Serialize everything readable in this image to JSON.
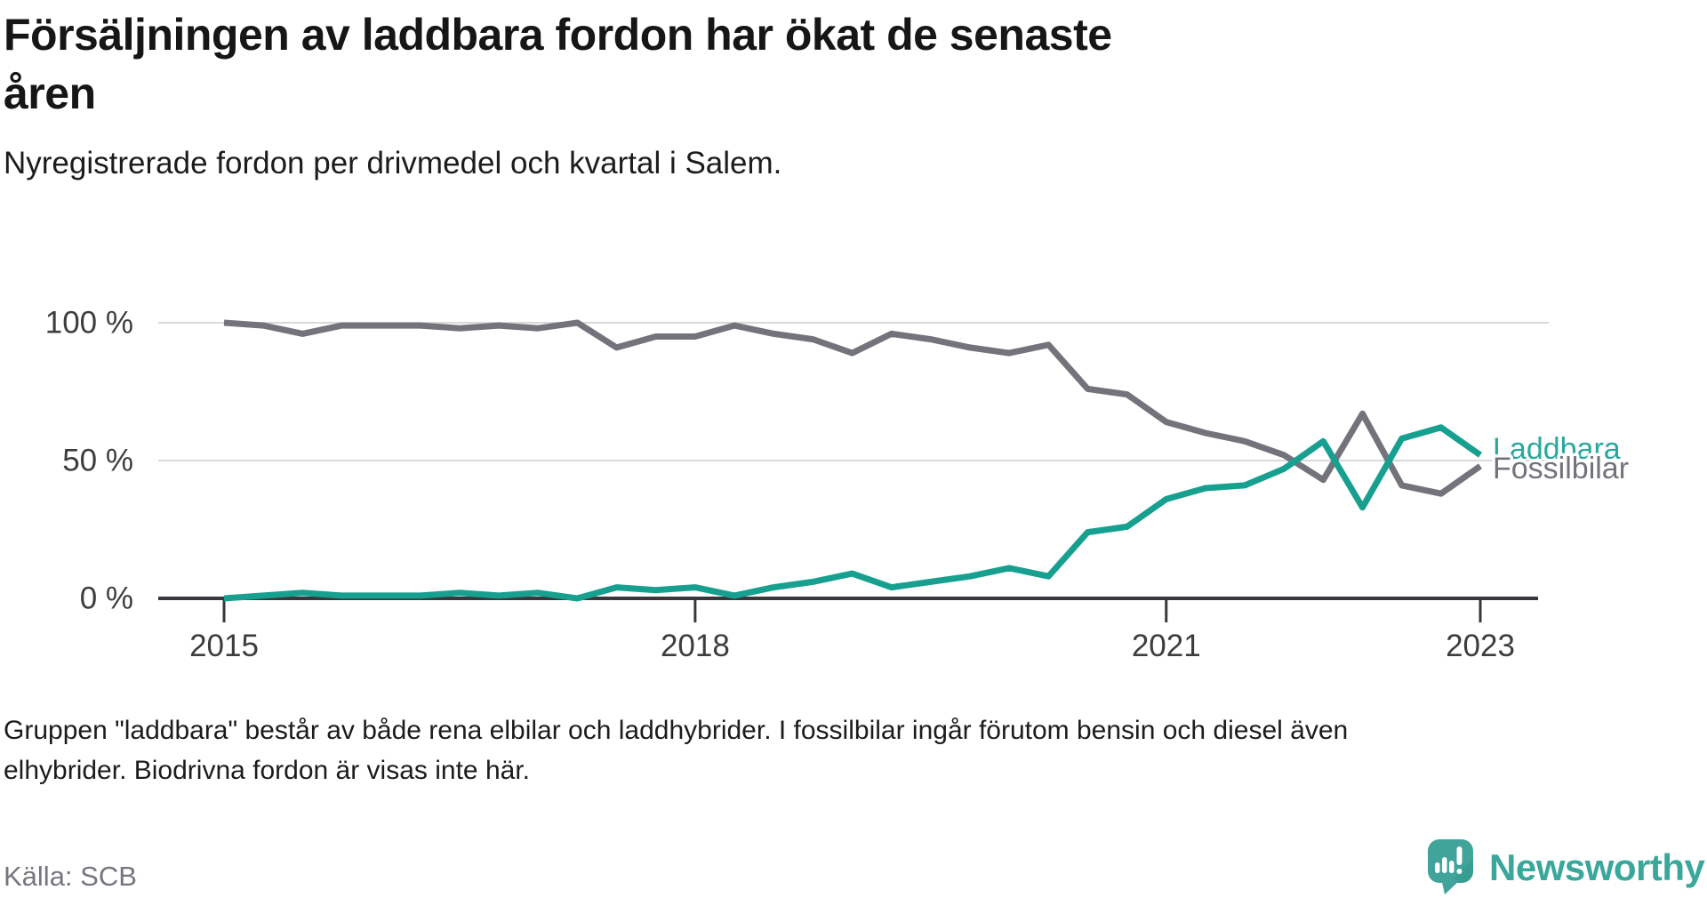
{
  "header": {
    "title_lines": [
      "Försäljningen av laddbara fordon har ökat de senaste",
      "åren"
    ],
    "subtitle": "Nyregistrerade fordon per drivmedel och kvartal i Salem."
  },
  "chart_data": {
    "type": "line",
    "x": [
      "2015 Q1",
      "2015 Q2",
      "2015 Q3",
      "2015 Q4",
      "2016 Q1",
      "2016 Q2",
      "2016 Q3",
      "2016 Q4",
      "2017 Q1",
      "2017 Q2",
      "2017 Q3",
      "2017 Q4",
      "2018 Q1",
      "2018 Q2",
      "2018 Q3",
      "2018 Q4",
      "2019 Q1",
      "2019 Q2",
      "2019 Q3",
      "2019 Q4",
      "2020 Q1",
      "2020 Q2",
      "2020 Q3",
      "2020 Q4",
      "2021 Q1",
      "2021 Q2",
      "2021 Q3",
      "2021 Q4",
      "2022 Q1",
      "2022 Q2",
      "2022 Q3",
      "2022 Q4",
      "2023 Q1"
    ],
    "series": [
      {
        "name": "Fossilbilar",
        "color": "#73737b",
        "values": [
          100,
          99,
          96,
          99,
          99,
          99,
          98,
          99,
          98,
          100,
          91,
          95,
          95,
          99,
          96,
          94,
          89,
          96,
          94,
          91,
          89,
          92,
          76,
          74,
          64,
          60,
          57,
          52,
          43,
          67,
          41,
          38,
          48
        ]
      },
      {
        "name": "Laddbara",
        "color": "#17a08f",
        "values": [
          0,
          1,
          2,
          1,
          1,
          1,
          2,
          1,
          2,
          0,
          4,
          3,
          4,
          1,
          4,
          6,
          9,
          4,
          6,
          8,
          11,
          8,
          24,
          26,
          36,
          40,
          41,
          47,
          57,
          33,
          58,
          62,
          52
        ]
      }
    ],
    "unit": "%",
    "ylim": [
      0,
      100
    ],
    "y_ticks": [
      {
        "value": 100,
        "label": "100 %"
      },
      {
        "value": 50,
        "label": "50 %"
      },
      {
        "value": 0,
        "label": "0 %"
      }
    ],
    "x_ticks": [
      {
        "index": 0,
        "label": "2015"
      },
      {
        "index": 12,
        "label": "2018"
      },
      {
        "index": 24,
        "label": "2021"
      },
      {
        "index": 32,
        "label": "2023"
      }
    ],
    "grid": "horizontal",
    "legend_position": "line-end",
    "series_label_colors": {
      "Fossilbilar": "#73737b",
      "Laddbara": "#2aa89c"
    }
  },
  "footnote": {
    "line1": "Gruppen \"laddbara\" består av både rena elbilar och laddhybrider. I fossilbilar ingår förutom bensin och diesel även",
    "line2": "elhybrider. Biodrivna fordon är visas inte här."
  },
  "source": {
    "label": "Källa: SCB"
  },
  "branding": {
    "name": "Newsworthy",
    "text_color": "#3aa79b",
    "icon_color": "#40a49b",
    "icon_fold_color": "#2f958b"
  }
}
